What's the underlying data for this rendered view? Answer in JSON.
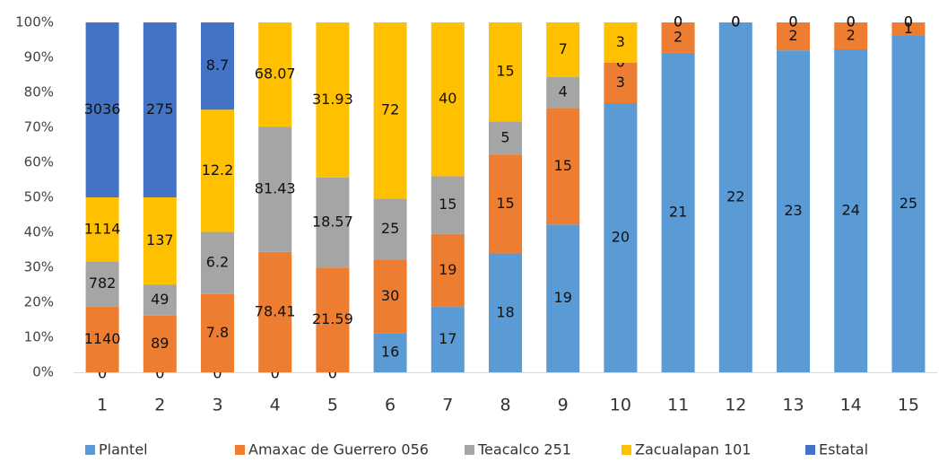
{
  "chart_data": {
    "type": "stacked_percent_bar",
    "categories": [
      "1",
      "2",
      "3",
      "4",
      "5",
      "6",
      "7",
      "8",
      "9",
      "10",
      "11",
      "12",
      "13",
      "14",
      "15"
    ],
    "series": [
      {
        "name": "Plantel",
        "color": "#5b9bd5",
        "values": [
          0,
          0,
          0,
          0,
          0,
          16,
          17,
          18,
          19,
          20,
          21,
          22,
          23,
          24,
          25
        ]
      },
      {
        "name": "Amaxac de Guerrero 056",
        "color": "#ed7d31",
        "values": [
          1140,
          89,
          7.8,
          78.41,
          21.59,
          30,
          19,
          15,
          15,
          3,
          2,
          0,
          2,
          2,
          1
        ]
      },
      {
        "name": "Teacalco 251",
        "color": "#a5a5a5",
        "values": [
          782,
          49,
          6.2,
          81.43,
          18.57,
          25,
          15,
          5,
          4,
          0,
          0,
          0,
          0,
          0,
          0
        ]
      },
      {
        "name": "Zacualapan 101",
        "color": "#ffc000",
        "values": [
          1114,
          137,
          12.2,
          68.07,
          31.93,
          72,
          40,
          15,
          7,
          3,
          0,
          0,
          0,
          0,
          0
        ]
      },
      {
        "name": "Estatal",
        "color": "#4472c4",
        "values": [
          3036,
          275,
          8.7,
          null,
          null,
          null,
          null,
          null,
          null,
          null,
          null,
          null,
          null,
          null,
          null
        ]
      }
    ],
    "ylim": [
      0,
      100
    ],
    "yticks": [
      {
        "value": 0,
        "label": "0%"
      },
      {
        "value": 10,
        "label": "10%"
      },
      {
        "value": 20,
        "label": "20%"
      },
      {
        "value": 30,
        "label": "30%"
      },
      {
        "value": 40,
        "label": "40%"
      },
      {
        "value": 50,
        "label": "50%"
      },
      {
        "value": 60,
        "label": "60%"
      },
      {
        "value": 70,
        "label": "70%"
      },
      {
        "value": 80,
        "label": "80%"
      },
      {
        "value": 90,
        "label": "90%"
      },
      {
        "value": 100,
        "label": "100%"
      }
    ],
    "legend": "bottom"
  }
}
